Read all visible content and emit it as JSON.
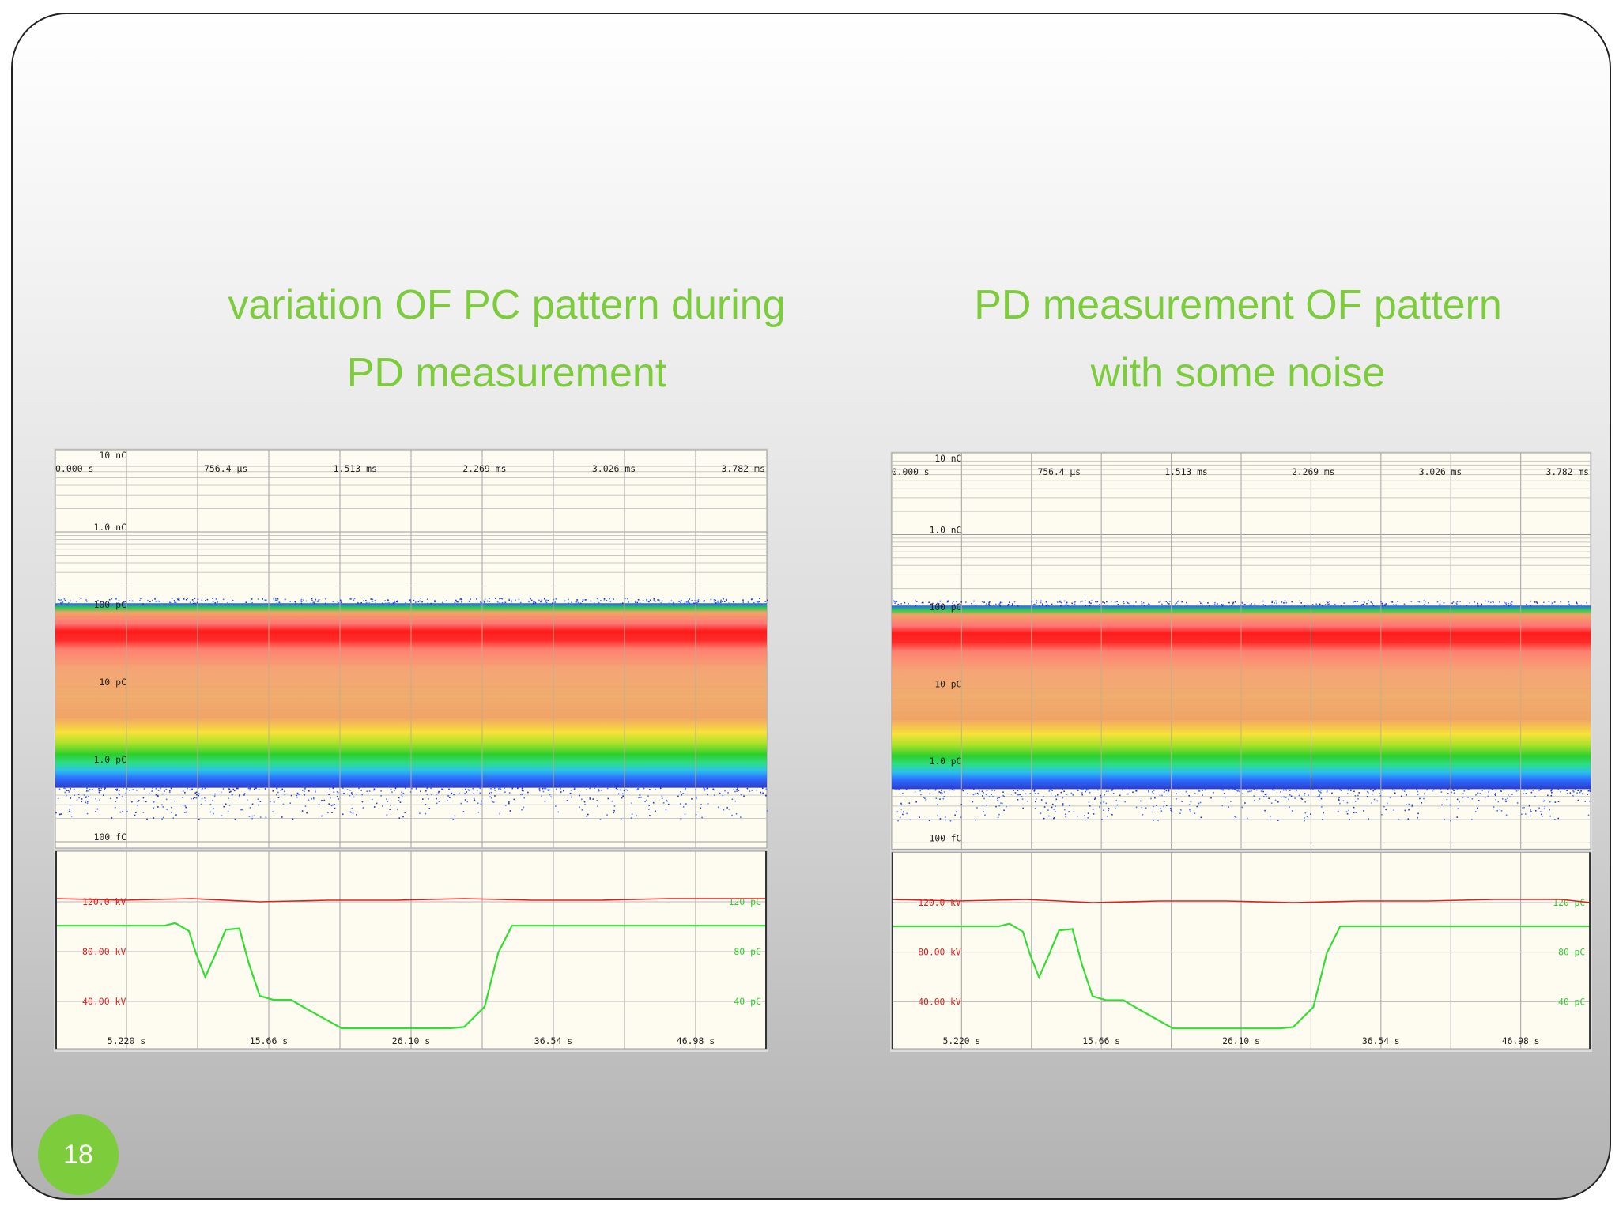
{
  "slide": {
    "title_left": [
      "variation OF PC pattern during",
      "PD measurement"
    ],
    "title_right": [
      "PD measurement  OF pattern",
      "with some noise"
    ],
    "page_number": "18",
    "accent_color": "#7ccc3c"
  },
  "chart_data": [
    {
      "type": "scatter",
      "title": "",
      "top_time_ticks": [
        "0.000 s",
        "756.4 µs",
        "1.513 ms",
        "2.269 ms",
        "3.026 ms",
        "3.782 ms"
      ],
      "charge_ticks": [
        "10 nC",
        "1.0 nC",
        "100 pC",
        "10 pC",
        "1.0 pC",
        "100 fC"
      ],
      "charge_scale": "log",
      "charge_range_pC": [
        0.1,
        10000
      ],
      "pattern_band_pC": [
        0.5,
        120
      ],
      "densest_band_pC": 60,
      "trend_panel": {
        "x_ticks": [
          "5.220 s",
          "15.66 s",
          "26.10 s",
          "36.54 s",
          "46.98 s"
        ],
        "voltage_ticks": [
          "120.0 kV",
          "80.00 kV",
          "40.00 kV"
        ],
        "charge_ticks": [
          "120 pC",
          "80 pC",
          "40 pC"
        ],
        "x_range_s": [
          0,
          52.2
        ],
        "series": [
          {
            "color": "#e02020",
            "x": [
              0,
              5,
              10,
              15,
              20,
              25,
              30,
              35,
              40,
              45,
              50,
              52.2
            ],
            "y": [
              120,
              119.5,
              120,
              119,
              119.5,
              119.5,
              120,
              119.5,
              119.5,
              120,
              120,
              120
            ]
          },
          {
            "color": "#33dd33",
            "x": [
              0,
              8,
              8.8,
              9.8,
              10.3,
              11,
              11.8,
              12.5,
              13.5,
              14.2,
              15,
              16,
              17.3,
              18.5,
              21,
              25,
              29,
              30,
              31.5,
              32.5,
              33.5,
              35,
              40,
              45,
              50,
              52.2
            ],
            "y": [
              100,
              100,
              102,
              96,
              80,
              62,
              80,
              97,
              98,
              72,
              48,
              45,
              45,
              38,
              24,
              24,
              24,
              25,
              40,
              80,
              100,
              100,
              100,
              100,
              100,
              100
            ]
          }
        ]
      }
    },
    {
      "type": "scatter",
      "title": "",
      "top_time_ticks": [
        "0.000 s",
        "756.4 µs",
        "1.513 ms",
        "2.269 ms",
        "3.026 ms",
        "3.782 ms"
      ],
      "charge_ticks": [
        "10 nC",
        "1.0 nC",
        "100 pC",
        "10 pC",
        "1.0 pC",
        "100 fC"
      ],
      "charge_scale": "log",
      "charge_range_pC": [
        0.1,
        10000
      ],
      "pattern_band_pC": [
        0.5,
        120
      ],
      "densest_band_pC": 60,
      "trend_panel": {
        "x_ticks": [
          "5.220 s",
          "15.66 s",
          "26.10 s",
          "36.54 s",
          "46.98 s"
        ],
        "voltage_ticks": [
          "120.0 kV",
          "80.00 kV",
          "40.00 kV"
        ],
        "charge_ticks": [
          "120 pC",
          "80 pC",
          "40 pC"
        ],
        "x_range_s": [
          0,
          52.2
        ],
        "series": [
          {
            "color": "#e02020",
            "x": [
              0,
              5,
              10,
              15,
              20,
              25,
              30,
              35,
              40,
              45,
              50,
              52.2
            ],
            "y": [
              120,
              119.5,
              120,
              119,
              119.5,
              119.5,
              119,
              119.5,
              119.5,
              120,
              120,
              119
            ]
          },
          {
            "color": "#33dd33",
            "x": [
              0,
              8,
              8.8,
              9.8,
              10.3,
              11,
              11.8,
              12.5,
              13.5,
              14.2,
              15,
              16,
              17.3,
              18.5,
              21,
              25,
              29,
              30,
              31.5,
              32.5,
              33.5,
              35,
              40,
              45,
              50,
              52.2
            ],
            "y": [
              100,
              100,
              102,
              96,
              80,
              62,
              80,
              97,
              98,
              72,
              48,
              45,
              45,
              38,
              24,
              24,
              24,
              25,
              40,
              80,
              100,
              100,
              100,
              100,
              100,
              100
            ]
          }
        ]
      }
    }
  ]
}
